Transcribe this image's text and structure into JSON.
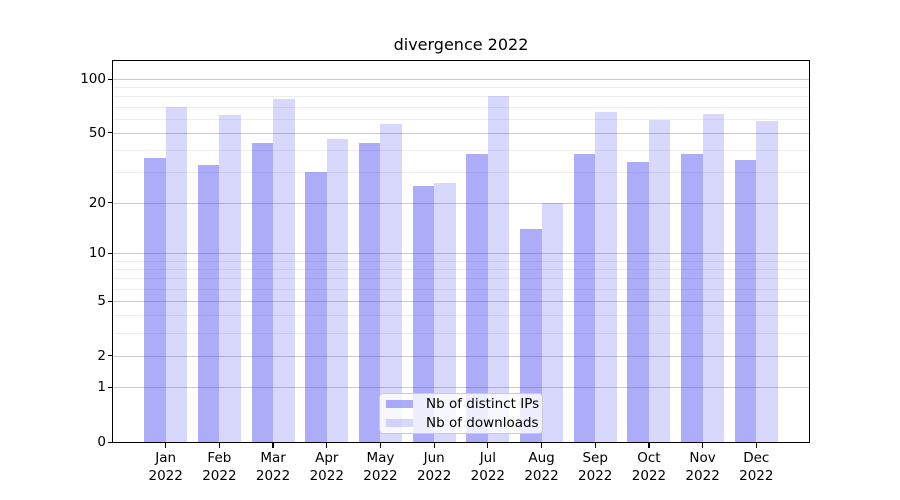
{
  "figure": {
    "title": "divergence 2022",
    "background_color": "#ffffff"
  },
  "chart_data": {
    "type": "bar",
    "title": "divergence 2022",
    "xlabel": "",
    "ylabel": "",
    "x_categories": [
      "Jan",
      "Feb",
      "Mar",
      "Apr",
      "May",
      "Jun",
      "Jul",
      "Aug",
      "Sep",
      "Oct",
      "Nov",
      "Dec"
    ],
    "x_category_year": "2022",
    "y_scale": "log(1+x)",
    "ylim": [
      0,
      126
    ],
    "y_major_ticks": [
      0,
      1,
      2,
      5,
      10,
      20,
      50,
      100
    ],
    "y_minor_gridlines": [
      3,
      4,
      6,
      7,
      8,
      9,
      30,
      40,
      60,
      70,
      80,
      90
    ],
    "grid": "on (major + minor, horizontal)",
    "legend_location": "lower center inside plot",
    "series": [
      {
        "name": "Nb of distinct IPs",
        "fill": "rgba(70,70,240,0.45)",
        "fill_hex_on_white": "#adadf8",
        "values": [
          36,
          33,
          44,
          30,
          44,
          25,
          38,
          14,
          38,
          34,
          38,
          35
        ]
      },
      {
        "name": "Nb of downloads",
        "fill": "rgba(70,70,240,0.21)",
        "fill_hex_on_white": "#d9d9f9",
        "values": [
          70,
          63,
          77,
          46,
          56,
          26,
          80,
          20,
          65,
          59,
          64,
          58
        ]
      }
    ],
    "style": {
      "grid_major_color": "#c9c9c9",
      "grid_minor_color": "#ededed",
      "spine_color": "#000000",
      "text_color": "#000000"
    }
  }
}
